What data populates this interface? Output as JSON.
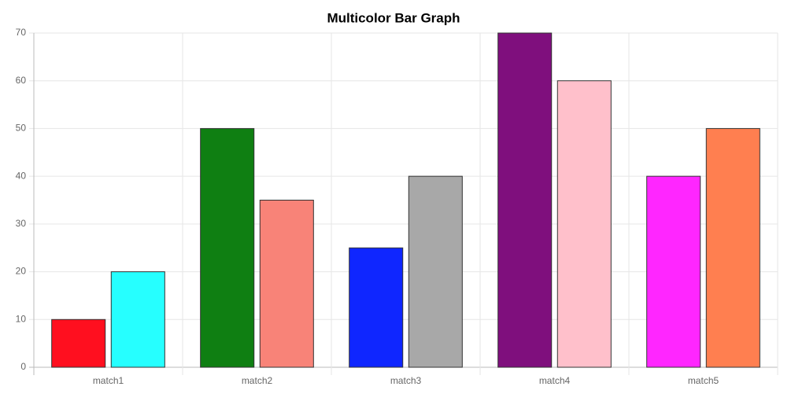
{
  "chart_data": {
    "type": "bar",
    "title": "Multicolor Bar Graph",
    "categories": [
      "match1",
      "match2",
      "match3",
      "match4",
      "match5"
    ],
    "series": [
      {
        "colors": [
          "#ff0f1f",
          "#0f7f12",
          "#0f26ff",
          "#7f0f7d",
          "#ff26ff"
        ],
        "values": [
          10,
          50,
          25,
          70,
          40
        ]
      },
      {
        "colors": [
          "#26ffff",
          "#f88378",
          "#a8a8a8",
          "#ffc0cb",
          "#ff7f50"
        ],
        "values": [
          20,
          35,
          40,
          60,
          50
        ]
      }
    ],
    "ylim": [
      0,
      70
    ],
    "yticks": [
      0,
      10,
      20,
      30,
      40,
      50,
      60,
      70
    ],
    "grid": true
  }
}
